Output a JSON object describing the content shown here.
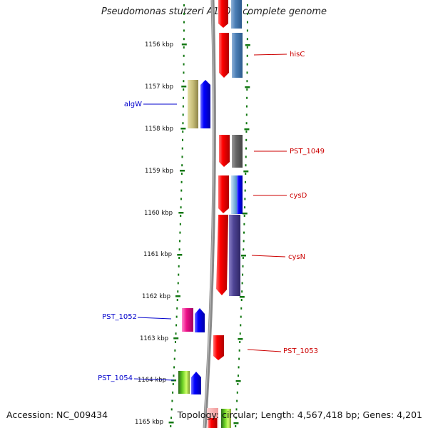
{
  "title": "Pseudomonas stutzeri A1501, complete genome",
  "footer": {
    "accession": "Accession: NC_009434",
    "topology": "Topology: circular; Length: 4,567,418 bp; Genes: 4,201"
  },
  "ticks": [
    "1156 kbp",
    "1157 kbp",
    "1158 kbp",
    "1159 kbp",
    "1160 kbp",
    "1161 kbp",
    "1162 kbp",
    "1163 kbp",
    "1164 kbp",
    "1165 kbp"
  ],
  "labels": [
    {
      "text": "hisC",
      "strand": "forward"
    },
    {
      "text": "algW",
      "strand": "reverse"
    },
    {
      "text": "PST_1049",
      "strand": "forward"
    },
    {
      "text": "cysD",
      "strand": "forward"
    },
    {
      "text": "cysN",
      "strand": "forward"
    },
    {
      "text": "PST_1052",
      "strand": "reverse"
    },
    {
      "text": "PST_1053",
      "strand": "forward"
    },
    {
      "text": "PST_1054",
      "strand": "reverse"
    }
  ],
  "colors": {
    "forward_label": "#cc0000",
    "reverse_label": "#0000cc",
    "backbone": "#888888",
    "ticks": "#117711",
    "forward_gene": "#ff0000",
    "reverse_gene": "#0000ff"
  }
}
